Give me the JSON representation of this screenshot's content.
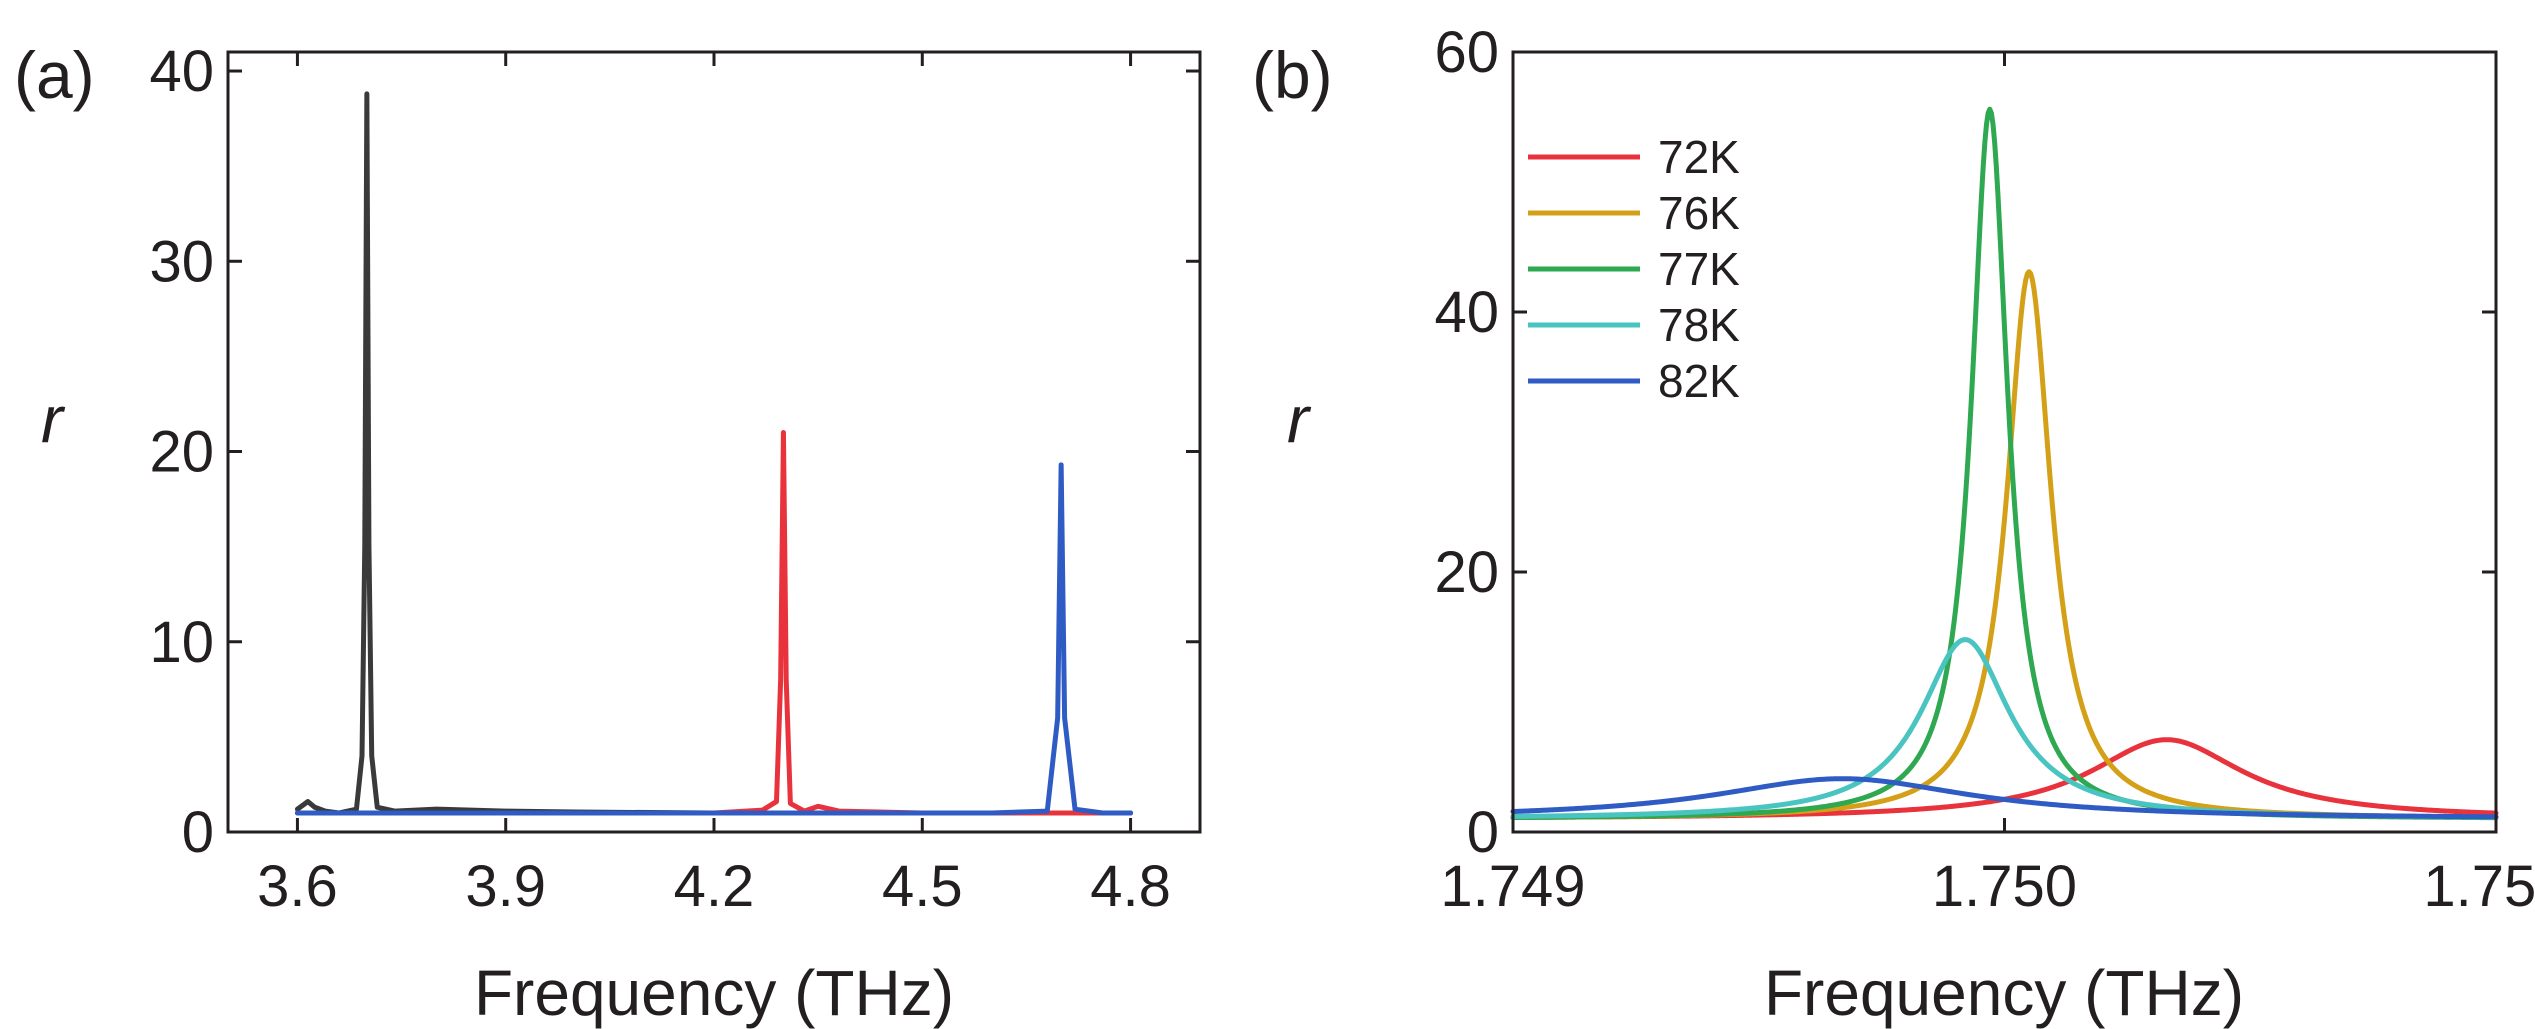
{
  "chart_data": [
    {
      "panel_label": "(a)",
      "type": "line",
      "xlabel": "Frequency (THz)",
      "ylabel": "r",
      "xlim": [
        3.5,
        4.9
      ],
      "ylim": [
        0,
        41
      ],
      "xticks": [
        3.6,
        3.9,
        4.2,
        4.5,
        4.8
      ],
      "xtick_labels": [
        "3.6",
        "3.9",
        "4.2",
        "4.5",
        "4.8"
      ],
      "yticks": [
        0,
        10,
        20,
        30,
        40
      ],
      "ytick_labels": [
        "0",
        "10",
        "20",
        "30",
        "40"
      ],
      "series": [
        {
          "name": "black",
          "color": "#3a3a3a",
          "x": [
            3.6,
            3.615,
            3.625,
            3.64,
            3.66,
            3.685,
            3.693,
            3.697,
            3.7,
            3.703,
            3.707,
            3.715,
            3.74,
            3.8,
            3.9,
            4.0,
            4.2,
            4.4,
            4.6,
            4.8
          ],
          "y": [
            1.2,
            1.6,
            1.3,
            1.1,
            1.0,
            1.2,
            4.0,
            15.0,
            38.8,
            15.0,
            4.0,
            1.3,
            1.1,
            1.2,
            1.1,
            1.05,
            1.0,
            1.0,
            1.0,
            1.0
          ]
        },
        {
          "name": "red",
          "color": "#e8333c",
          "x": [
            3.6,
            3.9,
            4.2,
            4.27,
            4.29,
            4.296,
            4.3,
            4.304,
            4.31,
            4.33,
            4.35,
            4.38,
            4.5,
            4.8
          ],
          "y": [
            1.0,
            1.0,
            1.0,
            1.15,
            1.6,
            8.0,
            21.0,
            8.0,
            1.5,
            1.1,
            1.35,
            1.1,
            1.0,
            1.0
          ]
        },
        {
          "name": "blue",
          "color": "#2f5bc4",
          "x": [
            3.6,
            3.8,
            4.0,
            4.2,
            4.4,
            4.6,
            4.68,
            4.695,
            4.7,
            4.705,
            4.72,
            4.76,
            4.8
          ],
          "y": [
            1.0,
            1.0,
            1.0,
            1.0,
            1.0,
            1.0,
            1.1,
            6.0,
            19.3,
            6.0,
            1.2,
            1.0,
            1.0
          ]
        }
      ]
    },
    {
      "panel_label": "(b)",
      "type": "line",
      "xlabel": "Frequency (THz)",
      "ylabel": "r",
      "xlim": [
        1.749,
        1.751
      ],
      "ylim": [
        0,
        60
      ],
      "xticks": [
        1.749,
        1.75,
        1.751
      ],
      "xtick_labels": [
        "1.749",
        "1.750",
        "1.751"
      ],
      "yticks": [
        0,
        20,
        40,
        60
      ],
      "ytick_labels": [
        "0",
        "20",
        "40",
        "60"
      ],
      "legend_position": "top-left",
      "series": [
        {
          "name": "72K",
          "color": "#e8333c",
          "type": "lorentz",
          "f0": 1.75033,
          "gamma": 0.00019,
          "peak": 7.1,
          "base": 1.0
        },
        {
          "name": "76K",
          "color": "#d4a017",
          "type": "lorentz",
          "f0": 1.75005,
          "gamma": 5.5e-05,
          "peak": 43.1,
          "base": 1.0
        },
        {
          "name": "77K",
          "color": "#2ea851",
          "type": "lorentz",
          "f0": 1.74997,
          "gamma": 4.5e-05,
          "peak": 55.6,
          "base": 1.0
        },
        {
          "name": "78K",
          "color": "#49c4c0",
          "type": "lorentz",
          "f0": 1.74992,
          "gamma": 0.00011,
          "peak": 14.8,
          "base": 1.0
        },
        {
          "name": "82K",
          "color": "#2f5bc4",
          "type": "lorentz",
          "f0": 1.74967,
          "gamma": 0.00032,
          "peak": 4.1,
          "base": 1.0
        }
      ]
    }
  ]
}
